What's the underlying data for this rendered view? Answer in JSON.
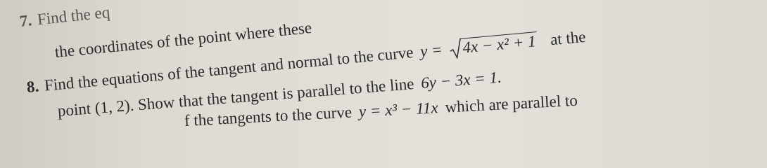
{
  "items": [
    {
      "number": "7.",
      "text": "Find the eq"
    },
    {
      "text": "the coordinates of the point where these"
    },
    {
      "number": "8.",
      "text": "Find the equations of the tangent and normal to the curve",
      "math": "y =",
      "radicand": "4x − x² + 1",
      "tail": "at the"
    },
    {
      "text": "point (1, 2). Show that the tangent is parallel to the line",
      "math": "6y − 3x = 1."
    },
    {
      "text": "f the tangents to the curve",
      "math": "y = x³ − 11x",
      "tail": "which are parallel to"
    }
  ]
}
